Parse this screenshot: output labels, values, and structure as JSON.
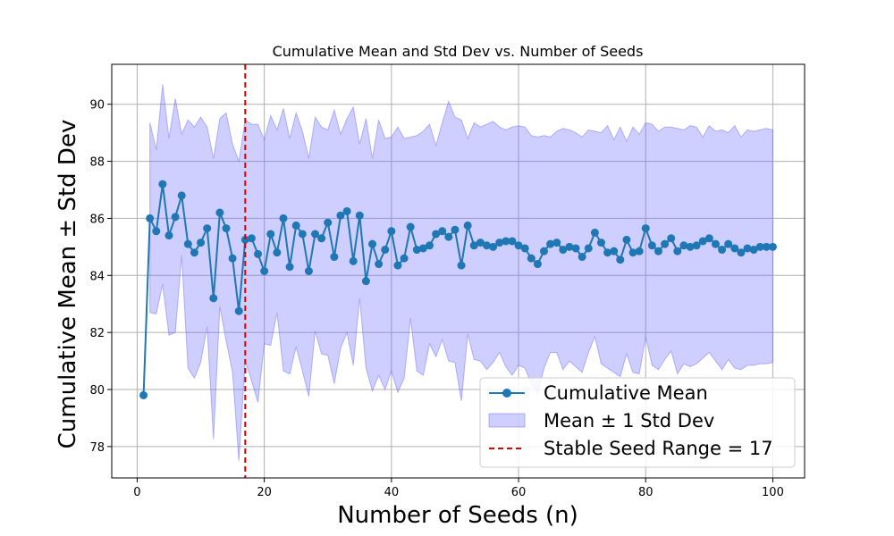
{
  "chart_data": {
    "type": "line",
    "title": "Cumulative Mean and Std Dev vs. Number of Seeds",
    "xlabel": "Number of Seeds (n)",
    "ylabel": "Cumulative Mean ± Std Dev",
    "xlim": [
      -4,
      105
    ],
    "ylim": [
      76.9,
      91.4
    ],
    "xticks": [
      0,
      20,
      40,
      60,
      80,
      100
    ],
    "yticks": [
      78,
      80,
      82,
      84,
      86,
      88,
      90
    ],
    "grid": true,
    "legend_position": "bottom-right",
    "x": [
      1,
      2,
      3,
      4,
      5,
      6,
      7,
      8,
      9,
      10,
      11,
      12,
      13,
      14,
      15,
      16,
      17,
      18,
      19,
      20,
      21,
      22,
      23,
      24,
      25,
      26,
      27,
      28,
      29,
      30,
      31,
      32,
      33,
      34,
      35,
      36,
      37,
      38,
      39,
      40,
      41,
      42,
      43,
      44,
      45,
      46,
      47,
      48,
      49,
      50,
      51,
      52,
      53,
      54,
      55,
      56,
      57,
      58,
      59,
      60,
      61,
      62,
      63,
      64,
      65,
      66,
      67,
      68,
      69,
      70,
      71,
      72,
      73,
      74,
      75,
      76,
      77,
      78,
      79,
      80,
      81,
      82,
      83,
      84,
      85,
      86,
      87,
      88,
      89,
      90,
      91,
      92,
      93,
      94,
      95,
      96,
      97,
      98,
      99,
      100
    ],
    "series": [
      {
        "name": "Cumulative Mean",
        "color": "#1f77b4",
        "values": [
          79.8,
          86.0,
          85.55,
          87.2,
          85.4,
          86.05,
          86.8,
          85.1,
          84.8,
          85.15,
          85.65,
          83.2,
          86.2,
          85.65,
          84.6,
          82.75,
          85.25,
          85.3,
          84.75,
          84.15,
          85.45,
          84.8,
          86.0,
          84.3,
          85.75,
          85.45,
          84.15,
          85.45,
          85.3,
          85.85,
          84.65,
          86.1,
          86.25,
          84.5,
          86.1,
          83.8,
          85.1,
          84.4,
          84.9,
          85.55,
          84.35,
          84.6,
          85.7,
          84.9,
          84.95,
          85.05,
          85.45,
          85.55,
          85.35,
          85.6,
          84.35,
          85.75,
          85.05,
          85.15,
          85.05,
          85.0,
          85.15,
          85.2,
          85.2,
          85.05,
          84.95,
          84.6,
          84.4,
          84.85,
          85.1,
          85.15,
          84.9,
          85.0,
          84.95,
          84.65,
          84.95,
          85.5,
          85.15,
          84.8,
          84.85,
          84.55,
          85.25,
          84.8,
          84.85,
          85.65,
          85.05,
          84.85,
          85.1,
          85.3,
          84.85,
          85.05,
          85.0,
          85.05,
          85.2,
          85.3,
          85.1,
          84.9,
          85.1,
          84.95,
          84.8,
          84.95,
          84.9,
          85.0,
          85.0,
          85.0
        ]
      },
      {
        "name": "Mean ± 1 Std Dev",
        "color": "#6666ff",
        "upper": [
          null,
          89.35,
          88.4,
          90.7,
          88.8,
          90.2,
          88.95,
          89.45,
          89.2,
          89.55,
          89.2,
          88.1,
          89.5,
          89.7,
          88.6,
          88.0,
          89.45,
          89.3,
          89.3,
          88.75,
          89.6,
          89.1,
          89.85,
          88.8,
          89.7,
          89.05,
          88.1,
          89.55,
          89.2,
          89.1,
          89.8,
          88.95,
          89.5,
          89.9,
          88.6,
          89.5,
          88.1,
          89.45,
          88.8,
          88.85,
          89.2,
          88.8,
          88.85,
          88.9,
          89.05,
          89.3,
          88.55,
          89.35,
          90.1,
          89.55,
          89.45,
          88.8,
          89.35,
          89.2,
          89.3,
          89.4,
          89.2,
          89.1,
          89.2,
          89.25,
          89.2,
          88.9,
          88.85,
          88.9,
          88.85,
          89.05,
          89.15,
          89.1,
          89.0,
          88.85,
          89.1,
          89.05,
          89.0,
          89.25,
          88.75,
          89.2,
          88.7,
          89.2,
          88.95,
          89.35,
          89.3,
          89.05,
          89.2,
          89.2,
          89.15,
          89.1,
          89.25,
          89.2,
          88.85,
          89.25,
          89.05,
          89.1,
          89.0,
          89.25,
          88.85,
          89.1,
          89.05,
          89.1,
          89.15,
          89.1
        ],
        "lower": [
          null,
          82.7,
          82.65,
          83.7,
          81.9,
          82.0,
          84.7,
          80.75,
          80.4,
          80.95,
          82.2,
          78.25,
          82.9,
          81.7,
          80.6,
          77.5,
          81.0,
          80.3,
          79.55,
          81.6,
          81.55,
          82.7,
          80.65,
          80.55,
          81.5,
          80.65,
          79.75,
          82.05,
          81.25,
          81.2,
          80.2,
          81.45,
          82.0,
          80.85,
          83.2,
          80.75,
          79.95,
          80.5,
          80.0,
          80.65,
          79.9,
          80.4,
          82.5,
          80.65,
          80.5,
          81.6,
          81.15,
          81.75,
          81.0,
          80.95,
          79.6,
          81.95,
          81.05,
          81.0,
          80.7,
          80.95,
          81.3,
          80.8,
          80.5,
          80.85,
          80.75,
          80.2,
          79.85,
          80.75,
          81.3,
          81.3,
          80.7,
          81.0,
          80.8,
          80.6,
          81.3,
          81.85,
          80.9,
          80.75,
          80.6,
          80.45,
          81.25,
          80.6,
          80.55,
          81.85,
          80.85,
          80.7,
          81.05,
          81.35,
          80.55,
          80.9,
          80.8,
          80.9,
          81.1,
          81.3,
          81.0,
          80.7,
          81.05,
          80.75,
          80.7,
          80.85,
          80.85,
          80.9,
          80.9,
          80.95
        ]
      }
    ],
    "vline": {
      "x": 17,
      "color": "#dd0000",
      "name": "Stable Seed Range = 17"
    }
  }
}
